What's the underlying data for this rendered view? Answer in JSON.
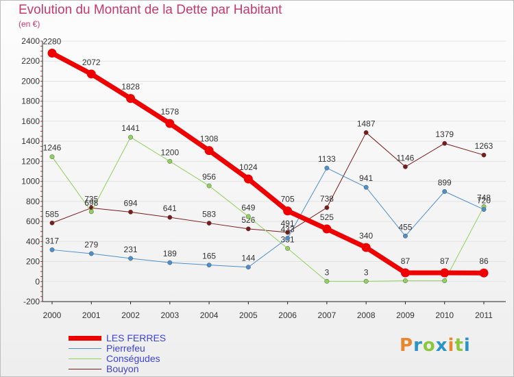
{
  "title": "Evolution du Montant de la Dette par Habitant",
  "unit": "(en €)",
  "brand": "Proxiti",
  "chart_data": {
    "type": "line",
    "x": [
      "2000",
      "2001",
      "2002",
      "2003",
      "2004",
      "2005",
      "2006",
      "2007",
      "2008",
      "2009",
      "2010",
      "2011"
    ],
    "ylim": [
      -200,
      2400
    ],
    "yticks": [
      -200,
      0,
      200,
      400,
      600,
      800,
      1000,
      1200,
      1400,
      1600,
      1800,
      2000,
      2200,
      2400
    ],
    "series": [
      {
        "name": "Bouyon",
        "color": "#7a1a1a",
        "width": 1,
        "labels": true,
        "values": [
          585,
          735,
          694,
          641,
          583,
          526,
          491,
          738,
          1487,
          1146,
          1379,
          1263
        ]
      },
      {
        "name": "Conségudes",
        "color": "#8fd15a",
        "width": 1,
        "labels": true,
        "values": [
          1246,
          698,
          1441,
          1200,
          956,
          649,
          331,
          3,
          3,
          8,
          8,
          748
        ]
      },
      {
        "name": "Pierrefeu",
        "color": "#4c8fcb",
        "width": 1,
        "labels": true,
        "values": [
          317,
          279,
          231,
          189,
          165,
          144,
          433,
          1133,
          941,
          455,
          899,
          720
        ]
      },
      {
        "name": "LES FERRES",
        "color": "#ee0000",
        "width": 7,
        "labels": true,
        "values": [
          2280,
          2072,
          1828,
          1578,
          1308,
          1024,
          705,
          525,
          340,
          87,
          87,
          86
        ]
      }
    ],
    "legend_order": [
      "LES FERRES",
      "Pierrefeu",
      "Conségudes",
      "Bouyon"
    ]
  }
}
